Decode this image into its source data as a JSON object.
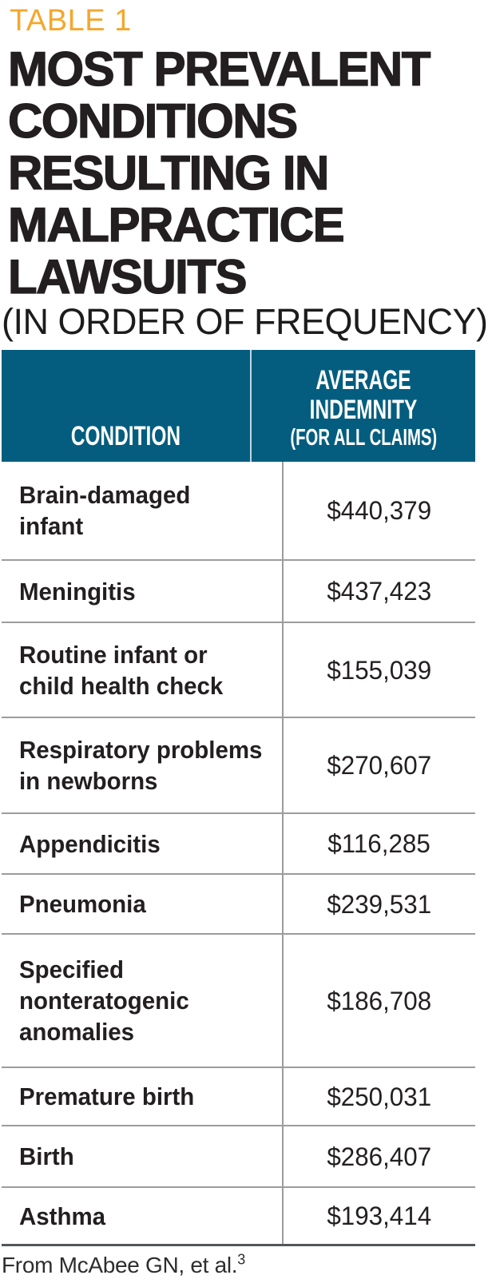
{
  "table_label": "TABLE 1",
  "title": "MOST PREVALENT CONDITIONS RESULTING IN MALPRACTICE LAWSUITS",
  "subtitle": "(IN ORDER OF FREQUENCY)",
  "table": {
    "col1_header": "CONDITION",
    "col2_header": "AVERAGE INDEMNITY",
    "col2_header_note": "(FOR ALL CLAIMS)",
    "rows": [
      {
        "condition": "Brain-damaged\ninfant",
        "indemnity": "$440,379"
      },
      {
        "condition": "Meningitis",
        "indemnity": "$437,423"
      },
      {
        "condition": "Routine infant or\nchild health check",
        "indemnity": "$155,039"
      },
      {
        "condition": "Respiratory problems\nin newborns",
        "indemnity": "$270,607"
      },
      {
        "condition": "Appendicitis",
        "indemnity": "$116,285"
      },
      {
        "condition": "Pneumonia",
        "indemnity": "$239,531"
      },
      {
        "condition": "Specified\nnonteratogenic\nanomalies",
        "indemnity": "$186,708"
      },
      {
        "condition": "Premature birth",
        "indemnity": "$250,031"
      },
      {
        "condition": "Birth",
        "indemnity": "$286,407"
      },
      {
        "condition": "Asthma",
        "indemnity": "$193,414"
      }
    ]
  },
  "footnote": {
    "text": "From McAbee GN, et al.",
    "superscript": "3"
  },
  "colors": {
    "header_background": "#045D7E",
    "accent_orange": "#F5A72B",
    "text_black": "#231F20",
    "row_divider_gray": "#9C9C9C",
    "table_bottom_border": "#55565B"
  }
}
